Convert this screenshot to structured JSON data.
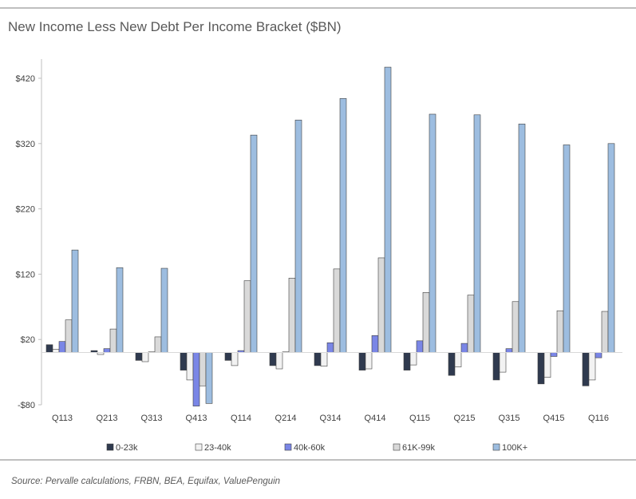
{
  "title": "New Income Less New Debt Per Income Bracket ($BN)",
  "source": "Source: Pervalle calculations, FRBN, BEA, Equifax, ValuePenguin",
  "colors": {
    "0-23k": "#2f3a4f",
    "23-40k": "#f2f2f2",
    "40k-60k": "#7a86e6",
    "61K-99k": "#d9d9d9",
    "100K+": "#9dbde0"
  },
  "chart_data": {
    "type": "bar",
    "categories": [
      "Q113",
      "Q213",
      "Q313",
      "Q413",
      "Q114",
      "Q214",
      "Q314",
      "Q414",
      "Q115",
      "Q215",
      "Q315",
      "Q415",
      "Q116"
    ],
    "ylim": [
      -80,
      440
    ],
    "yticks": [
      -80,
      20,
      120,
      220,
      320,
      420
    ],
    "ytick_labels": [
      "-$80",
      "$20",
      "$120",
      "$220",
      "$320",
      "$420"
    ],
    "grid": false,
    "legend_position": "bottom",
    "series": [
      {
        "name": "0-23k",
        "values": [
          12,
          3,
          -12,
          -27,
          -12,
          -20,
          -20,
          -27,
          -27,
          -35,
          -42,
          -48,
          -51
        ]
      },
      {
        "name": "23-40k",
        "values": [
          5,
          -3,
          -14,
          -42,
          -20,
          -25,
          -21,
          -25,
          -19,
          -22,
          -30,
          -38,
          -42
        ]
      },
      {
        "name": "40k-60k",
        "values": [
          17,
          6,
          1,
          -82,
          3,
          1,
          15,
          26,
          18,
          14,
          6,
          -6,
          -8
        ]
      },
      {
        "name": "61K-99k",
        "values": [
          50,
          36,
          24,
          -51,
          110,
          114,
          128,
          145,
          92,
          88,
          78,
          64,
          63
        ]
      },
      {
        "name": "100K+",
        "values": [
          157,
          130,
          129,
          -78,
          333,
          356,
          389,
          437,
          365,
          364,
          350,
          318,
          320
        ]
      }
    ]
  }
}
